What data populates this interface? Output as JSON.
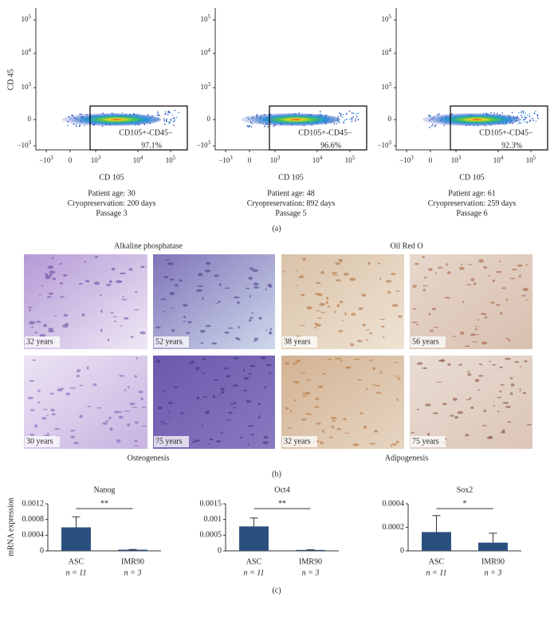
{
  "panel_a": {
    "label": "(a)",
    "y_axis_label": "CD 45",
    "x_axis_label": "CD 105",
    "gate_label": "CD105+-CD45−",
    "y_ticks": [
      {
        "base": "10",
        "sup": "5"
      },
      {
        "base": "10",
        "sup": "4"
      },
      {
        "base": "10",
        "sup": "3"
      },
      {
        "base": "0"
      },
      {
        "base": "−10",
        "sup": "3"
      }
    ],
    "x_ticks": [
      {
        "base": "−10",
        "sup": "3"
      },
      {
        "base": "0"
      },
      {
        "base": "10",
        "sup": "3"
      },
      {
        "base": "10",
        "sup": "4"
      },
      {
        "base": "10",
        "sup": "5"
      }
    ],
    "plots": [
      {
        "gate_percent": "97.1%",
        "caption": [
          "Patient age: 30",
          "Cryopreservation: 200 days",
          "Passage 3"
        ]
      },
      {
        "gate_percent": "96.6%",
        "caption": [
          "Patient age: 48",
          "Cryopreservation: 892 days",
          "Passage 5"
        ]
      },
      {
        "gate_percent": "92.3%",
        "caption": [
          "Patient age: 61",
          "Cryopreservation: 259 days",
          "Passage 6"
        ]
      }
    ]
  },
  "panel_b": {
    "label": "(b)",
    "stains": [
      "Alkaline phosphatase",
      "Oil Red O"
    ],
    "groups": [
      "Osteogenesis",
      "Adipogenesis"
    ],
    "images": [
      "32 years",
      "52 years",
      "38 years",
      "56 years",
      "30 years",
      "75 years",
      "32 years",
      "75 years"
    ]
  },
  "panel_c_label": "(c)",
  "chart_data": [
    {
      "type": "bar",
      "title": "Nanog",
      "y_axis_label": "mRNA expression",
      "categories": [
        "ASC",
        "IMR90"
      ],
      "sample_sizes": [
        "n = 11",
        "n = 3"
      ],
      "values": [
        0.0006,
        3e-05
      ],
      "errors": [
        0.00027,
        5e-06
      ],
      "color": "#2b4f7e",
      "ylim": [
        0,
        0.0012
      ],
      "yticks": [
        0,
        0.0004,
        0.0008,
        0.0012
      ],
      "significance": "**"
    },
    {
      "type": "bar",
      "title": "Oct4",
      "categories": [
        "ASC",
        "IMR90"
      ],
      "sample_sizes": [
        "n = 11",
        "n = 3"
      ],
      "values": [
        0.00078,
        3e-05
      ],
      "errors": [
        0.00027,
        5e-06
      ],
      "color": "#2b4f7e",
      "ylim": [
        0,
        0.0015
      ],
      "yticks": [
        0,
        0.0005,
        0.001,
        0.0015
      ],
      "significance": "**"
    },
    {
      "type": "bar",
      "title": "Sox2",
      "categories": [
        "ASC",
        "IMR90"
      ],
      "sample_sizes": [
        "n = 11",
        "n = 3"
      ],
      "values": [
        0.00016,
        7e-05
      ],
      "errors": [
        0.00014,
        8e-05
      ],
      "color": "#2b4f7e",
      "ylim": [
        0,
        0.0004
      ],
      "yticks": [
        0,
        0.0002,
        0.0004
      ],
      "significance": "*"
    }
  ]
}
